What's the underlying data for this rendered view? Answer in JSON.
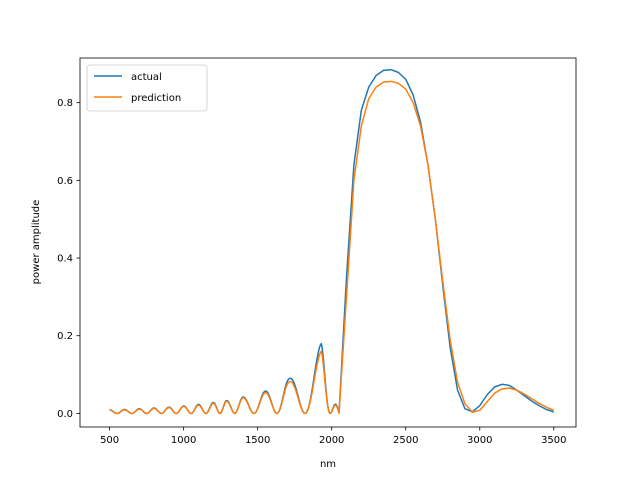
{
  "chart_data": {
    "type": "line",
    "xlabel": "nm",
    "ylabel": "power amplitude",
    "xlim": [
      300,
      3650
    ],
    "ylim": [
      -0.035,
      0.915
    ],
    "xticks": [
      500,
      1000,
      1500,
      2000,
      2500,
      3000,
      3500
    ],
    "yticks": [
      0.0,
      0.2,
      0.4,
      0.6,
      0.8
    ],
    "ytick_labels": [
      "0.0",
      "0.2",
      "0.4",
      "0.6",
      "0.8"
    ],
    "grid": false,
    "legend_position": "top-left",
    "series": [
      {
        "name": "actual",
        "color": "#1f77b4",
        "x": [
          500,
          2050,
          2100,
          2150,
          2200,
          2250,
          2300,
          2350,
          2400,
          2450,
          2500,
          2550,
          2600,
          2650,
          2700,
          2750,
          2800,
          2850,
          2900,
          2950,
          3000,
          3050,
          3100,
          3150,
          3200,
          3250,
          3300,
          3350,
          3400,
          3450,
          3500
        ],
        "y": [
          0.0,
          0.0,
          0.35,
          0.64,
          0.78,
          0.84,
          0.87,
          0.883,
          0.885,
          0.878,
          0.86,
          0.82,
          0.75,
          0.64,
          0.5,
          0.33,
          0.17,
          0.06,
          0.012,
          0.004,
          0.02,
          0.048,
          0.068,
          0.075,
          0.072,
          0.06,
          0.046,
          0.032,
          0.02,
          0.01,
          0.004
        ],
        "envelope": {
          "peaks_x": [
            500,
            600,
            700,
            800,
            900,
            1000,
            1100,
            1200,
            1290,
            1400,
            1550,
            1710,
            1930,
            2050
          ],
          "peaks_y": [
            0.009,
            0.01,
            0.012,
            0.014,
            0.016,
            0.019,
            0.023,
            0.028,
            0.033,
            0.042,
            0.057,
            0.088,
            0.18,
            0.0
          ]
        }
      },
      {
        "name": "prediction",
        "color": "#ff7f0e",
        "x": [
          500,
          2050,
          2100,
          2150,
          2200,
          2250,
          2300,
          2350,
          2400,
          2450,
          2500,
          2550,
          2600,
          2650,
          2700,
          2750,
          2800,
          2850,
          2900,
          2950,
          3000,
          3050,
          3100,
          3150,
          3200,
          3250,
          3300,
          3350,
          3400,
          3450,
          3500
        ],
        "y": [
          0.0,
          0.0,
          0.3,
          0.6,
          0.74,
          0.81,
          0.84,
          0.853,
          0.855,
          0.85,
          0.835,
          0.8,
          0.74,
          0.64,
          0.5,
          0.34,
          0.19,
          0.08,
          0.025,
          0.003,
          0.008,
          0.03,
          0.052,
          0.063,
          0.065,
          0.06,
          0.05,
          0.038,
          0.026,
          0.016,
          0.008
        ],
        "envelope": {
          "peaks_x": [
            500,
            600,
            700,
            800,
            900,
            1000,
            1100,
            1200,
            1290,
            1400,
            1550,
            1710,
            1930,
            2050
          ],
          "peaks_y": [
            0.008,
            0.009,
            0.011,
            0.013,
            0.015,
            0.018,
            0.021,
            0.026,
            0.031,
            0.04,
            0.053,
            0.08,
            0.16,
            0.0
          ]
        }
      }
    ]
  }
}
